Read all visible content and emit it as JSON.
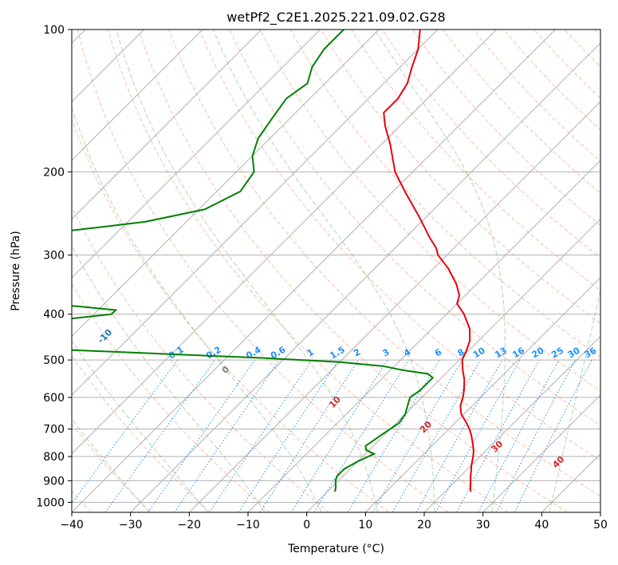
{
  "chart_data": {
    "type": "line",
    "title": "wetPf2_C2E1.2025.221.09.02.G28",
    "xlabel": "Temperature (°C)",
    "ylabel": "Pressure (hPa)",
    "xlim": [
      -40,
      50
    ],
    "ylim": [
      1050,
      100
    ],
    "y_scale": "log",
    "skew": 35,
    "x_ticks": [
      -40,
      -30,
      -20,
      -10,
      0,
      10,
      20,
      30,
      40,
      50
    ],
    "y_ticks": [
      100,
      200,
      300,
      400,
      500,
      600,
      700,
      800,
      900,
      1000
    ],
    "grid": true,
    "series": [
      {
        "color": "#e8000b",
        "points": [
          [
            100,
            -63
          ],
          [
            110,
            -60
          ],
          [
            120,
            -58
          ],
          [
            130,
            -56
          ],
          [
            140,
            -55
          ],
          [
            150,
            -55
          ],
          [
            160,
            -52.5
          ],
          [
            175,
            -48.5
          ],
          [
            200,
            -43
          ],
          [
            220,
            -38
          ],
          [
            250,
            -31
          ],
          [
            275,
            -26
          ],
          [
            290,
            -23
          ],
          [
            300,
            -21.5
          ],
          [
            320,
            -17.5
          ],
          [
            345,
            -13.5
          ],
          [
            365,
            -11
          ],
          [
            380,
            -10
          ],
          [
            400,
            -7
          ],
          [
            430,
            -3.5
          ],
          [
            455,
            -1.5
          ],
          [
            475,
            -0.5
          ],
          [
            500,
            0.5
          ],
          [
            525,
            2.3
          ],
          [
            550,
            4.2
          ],
          [
            580,
            6
          ],
          [
            600,
            7
          ],
          [
            625,
            8
          ],
          [
            650,
            9.5
          ],
          [
            680,
            12
          ],
          [
            700,
            13.5
          ],
          [
            720,
            14.8
          ],
          [
            745,
            16.2
          ],
          [
            760,
            17
          ],
          [
            780,
            18
          ],
          [
            800,
            18.8
          ],
          [
            820,
            19.5
          ],
          [
            840,
            20.2
          ],
          [
            860,
            21
          ],
          [
            880,
            21.7
          ],
          [
            900,
            22.5
          ],
          [
            930,
            23.6
          ],
          [
            950,
            24.4
          ]
        ]
      },
      {
        "color": "#008000",
        "points": [
          [
            100,
            -76
          ],
          [
            110,
            -76
          ],
          [
            120,
            -75
          ],
          [
            130,
            -73
          ],
          [
            140,
            -74
          ],
          [
            155,
            -73
          ],
          [
            170,
            -72
          ],
          [
            185,
            -70
          ],
          [
            200,
            -67
          ],
          [
            220,
            -66
          ],
          [
            240,
            -69
          ],
          [
            255,
            -77
          ],
          [
            265,
            -87
          ],
          [
            275,
            -97
          ],
          [
            283,
            -96
          ],
          [
            290,
            -88
          ],
          [
            295,
            -86
          ],
          [
            300,
            -86
          ],
          [
            305,
            -86.5
          ],
          [
            315,
            -91
          ],
          [
            325,
            -96
          ],
          [
            335,
            -100.5
          ],
          [
            350,
            -101
          ],
          [
            355,
            -101.5
          ],
          [
            362,
            -101
          ],
          [
            370,
            -97
          ],
          [
            378,
            -84
          ],
          [
            385,
            -74
          ],
          [
            392,
            -67
          ],
          [
            400,
            -67
          ],
          [
            410,
            -74
          ],
          [
            420,
            -88
          ],
          [
            430,
            -106
          ],
          [
            440,
            -106
          ],
          [
            450,
            -106
          ],
          [
            455,
            -105
          ],
          [
            465,
            -87
          ],
          [
            475,
            -70
          ],
          [
            485,
            -52
          ],
          [
            495,
            -34
          ],
          [
            505,
            -20
          ],
          [
            515,
            -12
          ],
          [
            525,
            -8
          ],
          [
            535,
            -3
          ],
          [
            545,
            -1.5
          ],
          [
            560,
            -1.5
          ],
          [
            580,
            -1.5
          ],
          [
            600,
            -2
          ],
          [
            625,
            -1
          ],
          [
            650,
            0
          ],
          [
            680,
            0.5
          ],
          [
            700,
            0
          ],
          [
            720,
            -0.5
          ],
          [
            745,
            -1
          ],
          [
            760,
            -1.3
          ],
          [
            775,
            -0.5
          ],
          [
            790,
            1.5
          ],
          [
            800,
            1
          ],
          [
            820,
            0
          ],
          [
            850,
            -1
          ],
          [
            880,
            -1
          ],
          [
            900,
            -0.5
          ],
          [
            930,
            0.7
          ],
          [
            950,
            1.3
          ]
        ]
      }
    ],
    "dry_adiabats": [
      -100,
      -90,
      -80,
      -70,
      -60,
      -50,
      -40,
      -30,
      -20,
      -10
    ],
    "moist_adiabats": [
      0,
      10,
      20,
      30,
      40
    ],
    "mixing_ratios": [
      0.1,
      0.2,
      0.4,
      0.6,
      1,
      1.5,
      2,
      3,
      4,
      6,
      8,
      10,
      13,
      16,
      20,
      25,
      30,
      36
    ],
    "colors": {
      "temperature": "#e8000b",
      "dewpoint": "#008000",
      "isotherm": "#b0b0b0",
      "isobar": "#b0b0b0",
      "dry_adiabat_label": "#1f77b4",
      "moist_adiabat": "#c8a27a",
      "moist_label": "#d62728",
      "mixing_ratio": "#1e90ff"
    }
  }
}
